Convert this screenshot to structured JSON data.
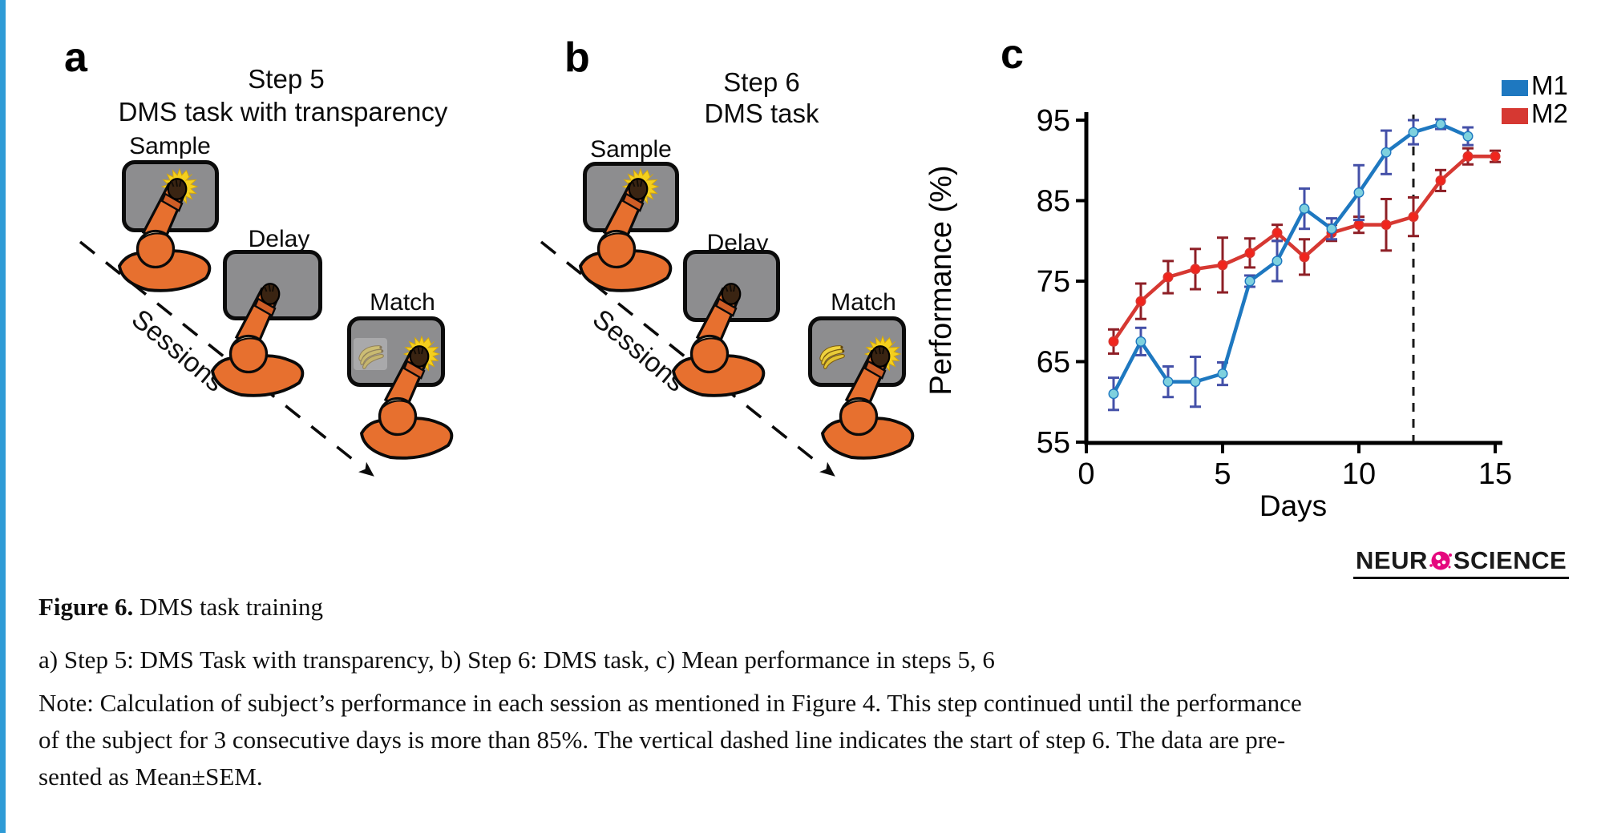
{
  "page": {
    "edge_color": "#2e9bd6",
    "background": "#ffffff"
  },
  "panels": {
    "a": {
      "letter": "a",
      "title_line1": "Step 5",
      "title_line2": "DMS task with transparency",
      "sample_label": "Sample",
      "delay_label": "Delay",
      "match_label": "Match",
      "sessions_label": "Sessions"
    },
    "b": {
      "letter": "b",
      "title_line1": "Step 6",
      "title_line2": "DMS task",
      "sample_label": "Sample",
      "delay_label": "Delay",
      "match_label": "Match",
      "sessions_label": "Sessions"
    },
    "c": {
      "letter": "c"
    }
  },
  "chart_data": {
    "type": "line",
    "title": "",
    "xlabel": "Days",
    "ylabel": "Performance (%)",
    "xlim": [
      0,
      15.5
    ],
    "ylim": [
      55,
      95
    ],
    "xticks": [
      0,
      5,
      10,
      15
    ],
    "yticks": [
      55,
      65,
      75,
      85,
      95
    ],
    "grid": false,
    "legend_position": "top-right",
    "vline_x": 12,
    "vline_style": "dashed",
    "vline_note": "start of step 6",
    "error_bars": "Mean±SEM",
    "series": [
      {
        "name": "M1",
        "color": "#1e78c0",
        "marker_color": "#7ed1de",
        "error_color": "#4450a8",
        "x": [
          1,
          2,
          3,
          4,
          5,
          6,
          7,
          8,
          9,
          10,
          11,
          12,
          13,
          14
        ],
        "y": [
          61,
          67.5,
          62.5,
          62.5,
          63.5,
          75,
          77.5,
          84,
          81.5,
          86,
          91,
          93.5,
          94.5,
          93
        ],
        "sem": [
          2,
          1.7,
          1.9,
          3.1,
          1.4,
          0.7,
          2.5,
          2.5,
          1.3,
          3.4,
          2.7,
          1.5,
          0.6,
          1.1
        ]
      },
      {
        "name": "M2",
        "color": "#d63832",
        "marker_color": "#f0251d",
        "error_color": "#8e1f26",
        "x": [
          1,
          2,
          3,
          4,
          5,
          6,
          7,
          8,
          9,
          10,
          11,
          12,
          13,
          14,
          15
        ],
        "y": [
          67.5,
          72.5,
          75.5,
          76.5,
          77,
          78.5,
          81,
          78,
          81,
          82,
          82,
          83,
          87.5,
          90.5,
          90.5
        ],
        "sem": [
          1.5,
          2.2,
          2,
          2.5,
          3.4,
          1.8,
          1,
          2.2,
          1,
          1,
          3.2,
          2.4,
          1.3,
          1,
          0.7
        ]
      }
    ]
  },
  "caption": {
    "figure_label": "Figure 6.",
    "figure_title": " DMS task training",
    "subcaption": "a) Step 5: DMS Task with transparency, b) Step 6: DMS task, c) Mean performance in steps 5, 6",
    "note_lines": [
      "Note: Calculation of subject’s performance in each session as mentioned in Figure 4. This step continued until the performance",
      "of the subject for 3 consecutive days is more than 85%. The vertical dashed line indicates the start of step 6. The data are pre-",
      "sented as Mean±SEM."
    ]
  },
  "logo": {
    "text_before": "NEUR",
    "text_after": "SCIENCE",
    "accent_color": "#e5087e",
    "text_color": "#1a1a1a"
  }
}
